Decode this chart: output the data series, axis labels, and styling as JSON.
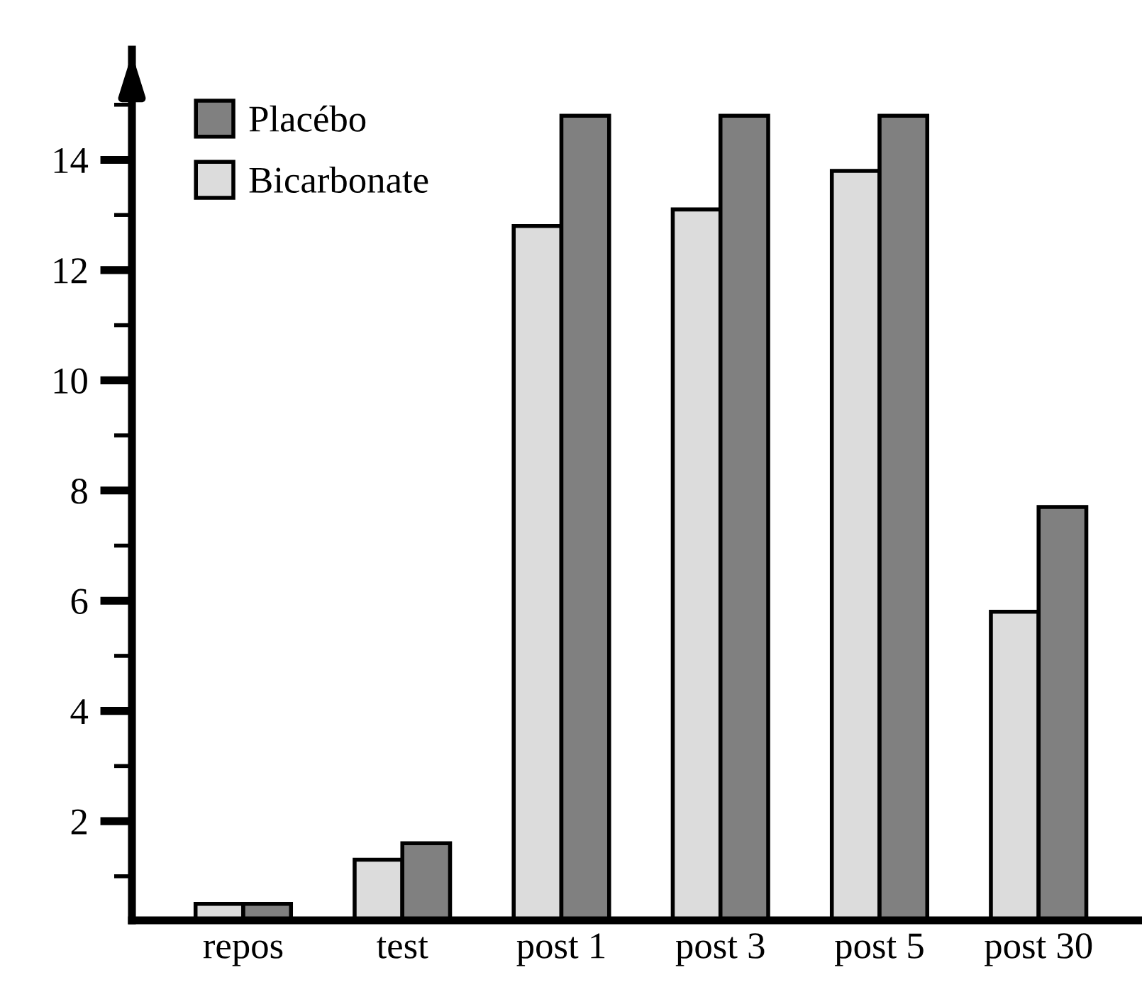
{
  "chart_data": {
    "type": "bar",
    "categories": [
      "repos",
      "test",
      "post 1",
      "post 3",
      "post 5",
      "post 30"
    ],
    "series": [
      {
        "name": "Bicarbonate",
        "color": "#dcdcdc",
        "values": [
          0.5,
          1.3,
          12.8,
          13.1,
          13.8,
          5.8
        ]
      },
      {
        "name": "Placébo",
        "color": "#808080",
        "values": [
          0.5,
          1.6,
          14.8,
          14.8,
          14.8,
          7.7
        ]
      }
    ],
    "ylim": [
      0.2,
      16
    ],
    "yticks": [
      {
        "value": 1,
        "label": null
      },
      2,
      {
        "value": 3,
        "label": null
      },
      4,
      {
        "value": 5,
        "label": null
      },
      6,
      {
        "value": 7,
        "label": null
      },
      8,
      {
        "value": 9,
        "label": null
      },
      10,
      {
        "value": 11,
        "label": null
      },
      12,
      {
        "value": 13,
        "label": null
      },
      14,
      {
        "value": 15,
        "label": null
      }
    ],
    "grid": false,
    "legend": "top left"
  }
}
